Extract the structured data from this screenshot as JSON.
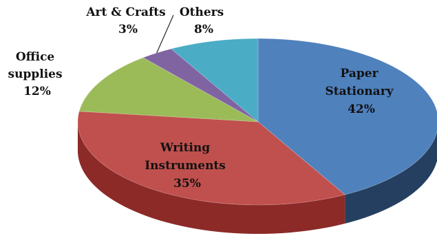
{
  "chart_data": {
    "type": "pie",
    "style": "3d",
    "slices": [
      {
        "label_lines": [
          "Paper",
          "Stationary"
        ],
        "value": 42,
        "pct_label": "42%",
        "color": "#4f81bd",
        "side_color": "#243f60",
        "label_pos": "inside"
      },
      {
        "label_lines": [
          "Writing",
          "Instruments"
        ],
        "value": 35,
        "pct_label": "35%",
        "color": "#c0504d",
        "side_color": "#8c2a28",
        "label_pos": "inside"
      },
      {
        "label_lines": [
          "Office",
          "supplies"
        ],
        "value": 12,
        "pct_label": "12%",
        "color": "#9bbb59",
        "side_color": "#6b8a32",
        "label_pos": "outside"
      },
      {
        "label_lines": [
          "Art & Crafts"
        ],
        "value": 3,
        "pct_label": "3%",
        "color": "#8064a2",
        "side_color": "#4f3a6b",
        "label_pos": "outside"
      },
      {
        "label_lines": [
          "Others"
        ],
        "value": 8,
        "pct_label": "8%",
        "color": "#4bacc6",
        "side_color": "#2a7287",
        "label_pos": "outside"
      }
    ]
  }
}
